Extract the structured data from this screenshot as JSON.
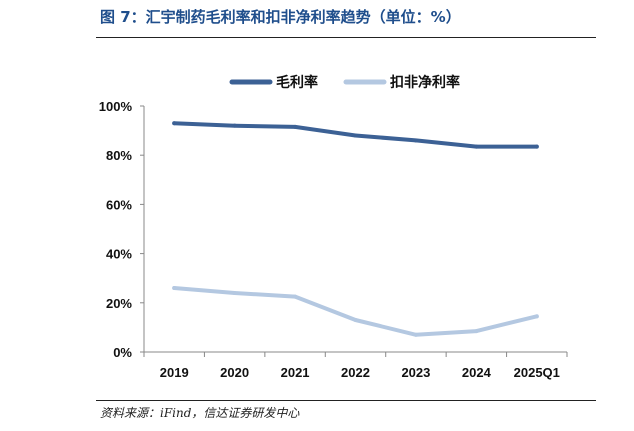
{
  "figure": {
    "title": "图 7：汇宇制药毛利率和扣非净利率趋势（单位：%）",
    "source": "资料来源：iFind，信达证券研发中心"
  },
  "chart_data": {
    "type": "line",
    "categories": [
      "2019",
      "2020",
      "2021",
      "2022",
      "2023",
      "2024",
      "2025Q1"
    ],
    "series": [
      {
        "name": "毛利率",
        "values": [
          93,
          92,
          91.5,
          88,
          86,
          83.5,
          83.5
        ],
        "color": "#3c6195"
      },
      {
        "name": "扣非净利率",
        "values": [
          26,
          24,
          22.5,
          13,
          7,
          8.5,
          14.5
        ],
        "color": "#b4c8e1"
      }
    ],
    "y_ticks": [
      "0%",
      "20%",
      "40%",
      "60%",
      "80%",
      "100%"
    ],
    "ylim": [
      0,
      100
    ],
    "title": "",
    "xlabel": "",
    "ylabel": "",
    "legend_position": "top-center",
    "grid": false
  }
}
